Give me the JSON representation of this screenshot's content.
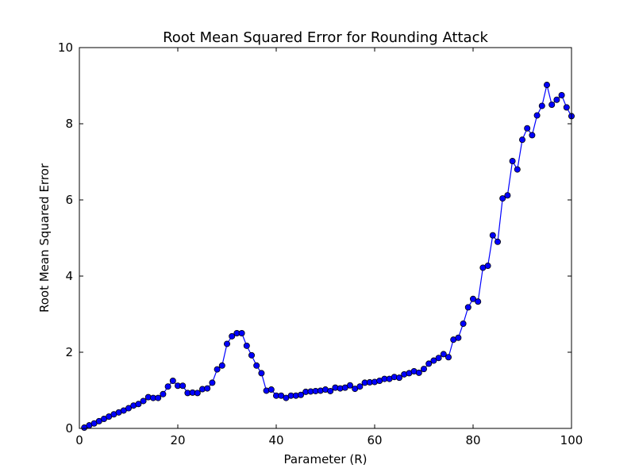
{
  "chart_data": {
    "type": "line",
    "title": "Root Mean Squared Error for Rounding Attack",
    "xlabel": "Parameter (R)",
    "ylabel": "Root Mean Squared Error",
    "xlim": [
      0,
      100
    ],
    "ylim": [
      0,
      10
    ],
    "xticks": [
      0,
      20,
      40,
      60,
      80,
      100
    ],
    "yticks": [
      0,
      2,
      4,
      6,
      8,
      10
    ],
    "grid": false,
    "series_color": "#0000ff",
    "marker_edge_color": "#000000",
    "x": [
      1,
      2,
      3,
      4,
      5,
      6,
      7,
      8,
      9,
      10,
      11,
      12,
      13,
      14,
      15,
      16,
      17,
      18,
      19,
      20,
      21,
      22,
      23,
      24,
      25,
      26,
      27,
      28,
      29,
      30,
      31,
      32,
      33,
      34,
      35,
      36,
      37,
      38,
      39,
      40,
      41,
      42,
      43,
      44,
      45,
      46,
      47,
      48,
      49,
      50,
      51,
      52,
      53,
      54,
      55,
      56,
      57,
      58,
      59,
      60,
      61,
      62,
      63,
      64,
      65,
      66,
      67,
      68,
      69,
      70,
      71,
      72,
      73,
      74,
      75,
      76,
      77,
      78,
      79,
      80,
      81,
      82,
      83,
      84,
      85,
      86,
      87,
      88,
      89,
      90,
      91,
      92,
      93,
      94,
      95,
      96,
      97,
      98,
      99,
      100
    ],
    "y": [
      0.02,
      0.08,
      0.13,
      0.19,
      0.25,
      0.31,
      0.37,
      0.42,
      0.47,
      0.53,
      0.6,
      0.64,
      0.72,
      0.82,
      0.8,
      0.8,
      0.9,
      1.1,
      1.25,
      1.12,
      1.12,
      0.93,
      0.94,
      0.93,
      1.03,
      1.05,
      1.2,
      1.55,
      1.65,
      2.22,
      2.42,
      2.5,
      2.5,
      2.17,
      1.92,
      1.65,
      1.45,
      0.99,
      1.02,
      0.86,
      0.86,
      0.8,
      0.86,
      0.86,
      0.88,
      0.96,
      0.97,
      0.98,
      0.99,
      1.02,
      0.98,
      1.07,
      1.05,
      1.07,
      1.13,
      1.04,
      1.1,
      1.2,
      1.21,
      1.22,
      1.25,
      1.3,
      1.3,
      1.35,
      1.33,
      1.42,
      1.45,
      1.5,
      1.46,
      1.56,
      1.7,
      1.78,
      1.85,
      1.95,
      1.87,
      2.33,
      2.38,
      2.75,
      3.18,
      3.4,
      3.33,
      4.22,
      4.27,
      5.07,
      4.9,
      6.04,
      6.12,
      7.02,
      6.8,
      7.58,
      7.88,
      7.7,
      8.22,
      8.47,
      9.02,
      8.5,
      8.63,
      8.75,
      8.43,
      8.2
    ]
  }
}
